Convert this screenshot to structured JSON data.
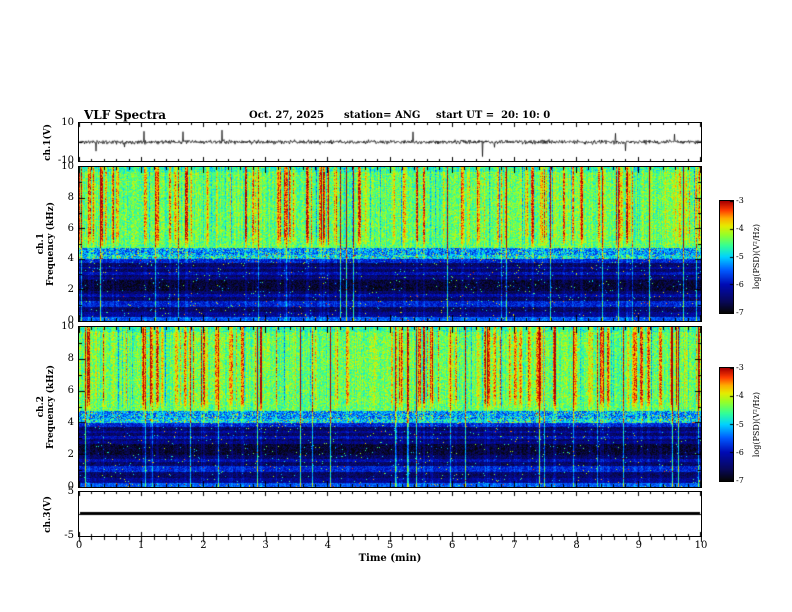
{
  "header": {
    "title": "VLF Spectra",
    "date": "Oct. 27, 2025",
    "station": "station= ANG",
    "start_ut": "start UT =  20: 10: 0"
  },
  "x_axis": {
    "label": "Time (min)",
    "min": 0,
    "max": 10,
    "ticks": [
      0,
      1,
      2,
      3,
      4,
      5,
      6,
      7,
      8,
      9,
      10
    ],
    "minor_tick_step": 0.2
  },
  "colormap": {
    "name": "jet-with-black-base",
    "range_log10_psd": [
      -7,
      -3
    ]
  },
  "chart_data": [
    {
      "type": "line",
      "panel": "ch1-waveform",
      "ylabel": "ch.1(V)",
      "ylim": [
        -10,
        10
      ],
      "yticks": [
        10,
        -10
      ],
      "xlim": [
        0,
        10
      ],
      "series_description": "Dense noisy voltage trace centered on 0 V, typical amplitude about ±1.5 V, with sparse impulsive spikes reaching roughly ±9 V across the 10-minute record"
    },
    {
      "type": "heatmap",
      "panel": "ch1-spectrogram",
      "ylabel_line1": "ch.1",
      "ylabel_line2": "Frequency (kHz)",
      "ylim": [
        0,
        10
      ],
      "yticks": [
        0,
        2,
        4,
        6,
        8,
        10
      ],
      "xlim": [
        0,
        10
      ],
      "colorbar": {
        "label": "log(PSD)(V²/Hz)",
        "ticks": [
          -3,
          -4,
          -5,
          -6,
          -7
        ],
        "range": [
          -7,
          -3
        ]
      },
      "content_description": "Strong broadband power (green/yellow, log PSD ~ -4.5 to -4) from ~5 to 10 kHz with many red vertical sferic streaks (~ -3); weak dark-blue/black power (~ -6.5) below ~4 kHz crossed by narrow horizontal bands near 1, 1.6, 3 and 3.4 kHz and thin cyan vertical lines; speckled blue transition band around 4-4.7 kHz"
    },
    {
      "type": "heatmap",
      "panel": "ch2-spectrogram",
      "ylabel_line1": "ch.2",
      "ylabel_line2": "Frequency (kHz)",
      "ylim": [
        0,
        10
      ],
      "yticks": [
        0,
        2,
        4,
        6,
        8,
        10
      ],
      "xlim": [
        0,
        10
      ],
      "colorbar": {
        "label": "log(PSD)(V²/Hz)",
        "ticks": [
          -3,
          -4,
          -5,
          -6,
          -7
        ],
        "range": [
          -7,
          -3
        ]
      },
      "content_description": "Same structure as ch.1: green/yellow broadband power above ~5 kHz with red impulsive vertical streaks, dark weak-power region below ~4 kHz with horizontal banding, blue speckled band near 4-4.7 kHz"
    },
    {
      "type": "line",
      "panel": "ch3-waveform",
      "ylabel": "ch.3(V)",
      "ylim": [
        -5,
        5
      ],
      "yticks": [
        5,
        -5
      ],
      "xlim": [
        0,
        10
      ],
      "series_description": "Constant flat thick black line at 0 V for the entire 10 minutes"
    }
  ]
}
